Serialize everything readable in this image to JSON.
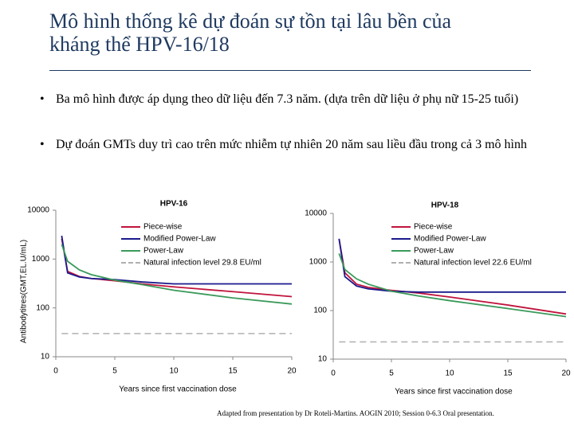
{
  "slide": {
    "title": "Mô hình thống kê dự đoán sự tồn tại lâu bền của kháng thể HPV-16/18",
    "bullets": [
      "Ba mô hình được áp dụng theo dữ liệu đến 7.3 năm. (dựa trên dữ liệu ở phụ nữ 15-25 tuổi)",
      "Dự đoán GMTs duy trì cao trên mức nhiễm tự nhiên 20 năm sau liều đầu trong cả 3 mô hình"
    ],
    "footnote": "Adapted from presentation by Dr Roteli-Martins. AOGIN 2010; Session 0-6.3 Oral presentation."
  },
  "chart_data": [
    {
      "type": "line",
      "title": "HPV-16",
      "xlabel": "Years since first vaccination dose",
      "ylabel": "Antibodytitres(GMT,EL.U/mL)",
      "x": [
        0.5,
        1,
        2,
        3,
        5,
        7.3,
        10,
        15,
        20
      ],
      "xlim": [
        0,
        20
      ],
      "xticks": [
        0,
        5,
        10,
        15,
        20
      ],
      "ylim": [
        10,
        10000
      ],
      "yticks": [
        10,
        100,
        1000,
        10000
      ],
      "log_y": true,
      "legend": "upper right",
      "series": [
        {
          "name": "Piece-wise",
          "color": "#c0143c",
          "values": [
            2600,
            560,
            440,
            400,
            360,
            310,
            270,
            215,
            170
          ]
        },
        {
          "name": "Modified Power-Law",
          "color": "#1a1a8c",
          "values": [
            3000,
            520,
            430,
            400,
            380,
            340,
            310,
            310,
            310
          ]
        },
        {
          "name": "Power-Law",
          "color": "#3a9a5a",
          "values": [
            2000,
            900,
            600,
            480,
            370,
            300,
            230,
            160,
            120
          ]
        },
        {
          "name": "Natural infection level 29.8 EU/ml",
          "color": "#b0b0b0",
          "style": "dashed",
          "values": [
            29.8,
            29.8,
            29.8,
            29.8,
            29.8,
            29.8,
            29.8,
            29.8,
            29.8
          ]
        }
      ]
    },
    {
      "type": "line",
      "title": "HPV-18",
      "xlabel": "Years since first vaccination dose",
      "x": [
        0.5,
        1,
        2,
        3,
        5,
        7.3,
        10,
        15,
        20
      ],
      "xlim": [
        0,
        20
      ],
      "xticks": [
        0,
        5,
        10,
        15,
        20
      ],
      "ylim": [
        10,
        10000
      ],
      "yticks": [
        10,
        100,
        1000,
        10000
      ],
      "log_y": true,
      "legend": "upper right",
      "series": [
        {
          "name": "Piece-wise",
          "color": "#c0143c",
          "values": [
            3000,
            600,
            350,
            300,
            260,
            230,
            190,
            130,
            85
          ]
        },
        {
          "name": "Modified Power-Law",
          "color": "#1a1a8c",
          "values": [
            3000,
            500,
            320,
            280,
            250,
            240,
            240,
            240,
            240
          ]
        },
        {
          "name": "Power-Law",
          "color": "#3a9a5a",
          "values": [
            1500,
            700,
            450,
            350,
            250,
            200,
            160,
            110,
            75
          ]
        },
        {
          "name": "Natural infection level 22.6 EU/ml",
          "color": "#b0b0b0",
          "style": "dashed",
          "values": [
            22.6,
            22.6,
            22.6,
            22.6,
            22.6,
            22.6,
            22.6,
            22.6,
            22.6
          ]
        }
      ]
    }
  ]
}
